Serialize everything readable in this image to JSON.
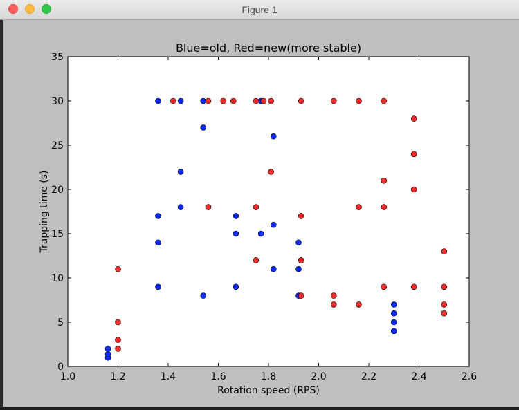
{
  "window": {
    "title": "Figure 1"
  },
  "chart_data": {
    "type": "scatter",
    "title": "Blue=old, Red=new(more stable)",
    "xlabel": "Rotation speed (RPS)",
    "ylabel": "Trapping time (s)",
    "xlim": [
      1.0,
      2.6
    ],
    "ylim": [
      0,
      35
    ],
    "xticks": [
      "1.0",
      "1.2",
      "1.4",
      "1.6",
      "1.8",
      "2.0",
      "2.2",
      "2.4",
      "2.6"
    ],
    "yticks": [
      "0",
      "5",
      "10",
      "15",
      "20",
      "25",
      "30",
      "35"
    ],
    "grid": false,
    "series": [
      {
        "color": "#0a2bff",
        "points": [
          [
            1.16,
            1
          ],
          [
            1.16,
            1.4
          ],
          [
            1.16,
            2
          ],
          [
            1.36,
            9
          ],
          [
            1.36,
            14
          ],
          [
            1.36,
            17
          ],
          [
            1.36,
            30
          ],
          [
            1.45,
            18
          ],
          [
            1.45,
            22
          ],
          [
            1.45,
            30
          ],
          [
            1.54,
            8
          ],
          [
            1.54,
            27
          ],
          [
            1.54,
            30
          ],
          [
            1.67,
            9
          ],
          [
            1.67,
            15
          ],
          [
            1.67,
            17
          ],
          [
            1.77,
            15
          ],
          [
            1.77,
            30
          ],
          [
            1.82,
            11
          ],
          [
            1.82,
            16
          ],
          [
            1.82,
            26
          ],
          [
            1.92,
            8
          ],
          [
            1.92,
            11
          ],
          [
            1.92,
            14
          ],
          [
            2.3,
            4
          ],
          [
            2.3,
            5
          ],
          [
            2.3,
            6
          ],
          [
            2.3,
            7
          ]
        ]
      },
      {
        "color": "#f52c2c",
        "points": [
          [
            1.2,
            2
          ],
          [
            1.2,
            3
          ],
          [
            1.2,
            5
          ],
          [
            1.2,
            11
          ],
          [
            1.42,
            30
          ],
          [
            1.56,
            18
          ],
          [
            1.56,
            30
          ],
          [
            1.62,
            30
          ],
          [
            1.66,
            30
          ],
          [
            1.75,
            12
          ],
          [
            1.75,
            18
          ],
          [
            1.75,
            30
          ],
          [
            1.78,
            30
          ],
          [
            1.81,
            22
          ],
          [
            1.81,
            30
          ],
          [
            1.93,
            8
          ],
          [
            1.93,
            12
          ],
          [
            1.93,
            17
          ],
          [
            1.93,
            30
          ],
          [
            2.06,
            7
          ],
          [
            2.06,
            8
          ],
          [
            2.06,
            30
          ],
          [
            2.16,
            7
          ],
          [
            2.16,
            18
          ],
          [
            2.16,
            30
          ],
          [
            2.26,
            9
          ],
          [
            2.26,
            18
          ],
          [
            2.26,
            21
          ],
          [
            2.26,
            30
          ],
          [
            2.38,
            9
          ],
          [
            2.38,
            20
          ],
          [
            2.38,
            24
          ],
          [
            2.38,
            28
          ],
          [
            2.5,
            6
          ],
          [
            2.5,
            7
          ],
          [
            2.5,
            9
          ],
          [
            2.5,
            13
          ]
        ]
      }
    ]
  }
}
